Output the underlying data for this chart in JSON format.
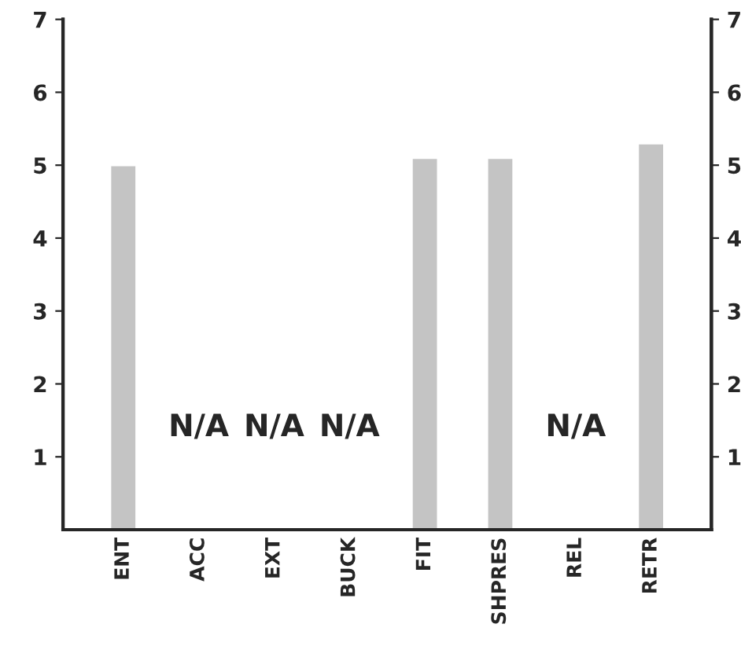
{
  "chart_data": {
    "type": "bar",
    "categories": [
      "ENT",
      "ACC",
      "EXT",
      "BUCK",
      "FIT",
      "SHPRES",
      "REL",
      "RETR"
    ],
    "values": [
      5.0,
      null,
      null,
      null,
      5.1,
      5.1,
      null,
      5.3
    ],
    "color": "#c4c4c4",
    "ylim": [
      0,
      7
    ],
    "yticks": [
      1,
      2,
      3,
      4,
      5,
      6,
      7
    ],
    "y2lim": [
      0,
      7
    ],
    "y2ticks": [
      1,
      2,
      3,
      4,
      5,
      6,
      7
    ],
    "annotations": [
      "N/A",
      "N/A",
      "N/A",
      "N/A"
    ],
    "grid": false,
    "legend": false
  }
}
